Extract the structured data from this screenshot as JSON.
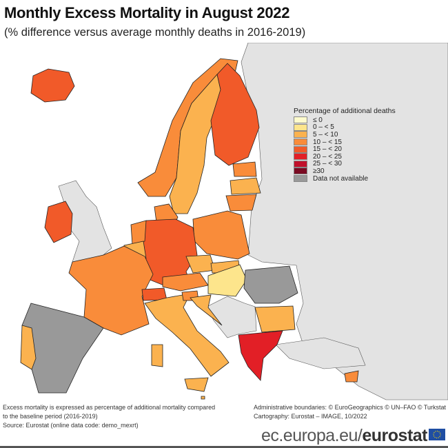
{
  "title": "Monthly Excess Mortality in August 2022",
  "subtitle": "(% difference versus average monthly deaths in 2016-2019)",
  "legend": {
    "title": "Percentage of additional deaths",
    "classes": [
      {
        "label": "≤ 0",
        "color": "#fefbcc"
      },
      {
        "label": "0 – < 5",
        "color": "#fde58c"
      },
      {
        "label": "5 – < 10",
        "color": "#fbb24f"
      },
      {
        "label": "10 – < 15",
        "color": "#f98c3a"
      },
      {
        "label": "15 – < 20",
        "color": "#f15a29"
      },
      {
        "label": "20 – < 25",
        "color": "#e21f26"
      },
      {
        "label": "25 – < 30",
        "color": "#c1102b"
      },
      {
        "label": "≥30",
        "color": "#7a0a22"
      },
      {
        "label": "Data not available",
        "color": "#999999"
      }
    ]
  },
  "regions": [
    {
      "country": "Iceland",
      "class": "15 – < 20"
    },
    {
      "country": "Ireland",
      "class": "15 – < 20"
    },
    {
      "country": "Norway",
      "class": "10 – < 15"
    },
    {
      "country": "Sweden",
      "class": "5 – < 10"
    },
    {
      "country": "Finland",
      "class": "15 – < 20"
    },
    {
      "country": "Estonia",
      "class": "10 – < 15"
    },
    {
      "country": "Latvia",
      "class": "5 – < 10"
    },
    {
      "country": "Lithuania",
      "class": "10 – < 15"
    },
    {
      "country": "Denmark",
      "class": "10 – < 15"
    },
    {
      "country": "Poland",
      "class": "10 – < 15"
    },
    {
      "country": "Germany",
      "class": "15 – < 20"
    },
    {
      "country": "Netherlands",
      "class": "10 – < 15"
    },
    {
      "country": "Belgium",
      "class": "5 – < 10"
    },
    {
      "country": "France",
      "class": "10 – < 15"
    },
    {
      "country": "Spain",
      "class": "Data not available"
    },
    {
      "country": "Portugal",
      "class": "5 – < 10"
    },
    {
      "country": "Switzerland",
      "class": "15 – < 20"
    },
    {
      "country": "Italy",
      "class": "5 – < 10"
    },
    {
      "country": "Czechia",
      "class": "5 – < 10"
    },
    {
      "country": "Austria",
      "class": "10 – < 15"
    },
    {
      "country": "Slovakia",
      "class": "5 – < 10"
    },
    {
      "country": "Hungary",
      "class": "0 – < 5"
    },
    {
      "country": "Slovenia",
      "class": "10 – < 15"
    },
    {
      "country": "Croatia",
      "class": "5 – < 10"
    },
    {
      "country": "Romania",
      "class": "Data not available"
    },
    {
      "country": "Bulgaria",
      "class": "5 – < 10"
    },
    {
      "country": "Greece",
      "class": "20 – < 25"
    },
    {
      "country": "Cyprus",
      "class": "10 – < 15"
    },
    {
      "country": "Malta",
      "class": "5 – < 10"
    }
  ],
  "footer": {
    "note_line1": "Excess mortality is expressed as percentage of additional mortality compared",
    "note_line2": "to the baseline period (2016-2019)",
    "source": "Source: Eurostat (online data code: demo_mexrt)",
    "boundaries": "Administrative boundaries: © EuroGeographics © UN–FAO © Turkstat",
    "cartography": "Cartography: Eurostat – IMAGE, 10/2022",
    "brand_light": "ec.europa.eu/",
    "brand_bold": "eurostat"
  }
}
